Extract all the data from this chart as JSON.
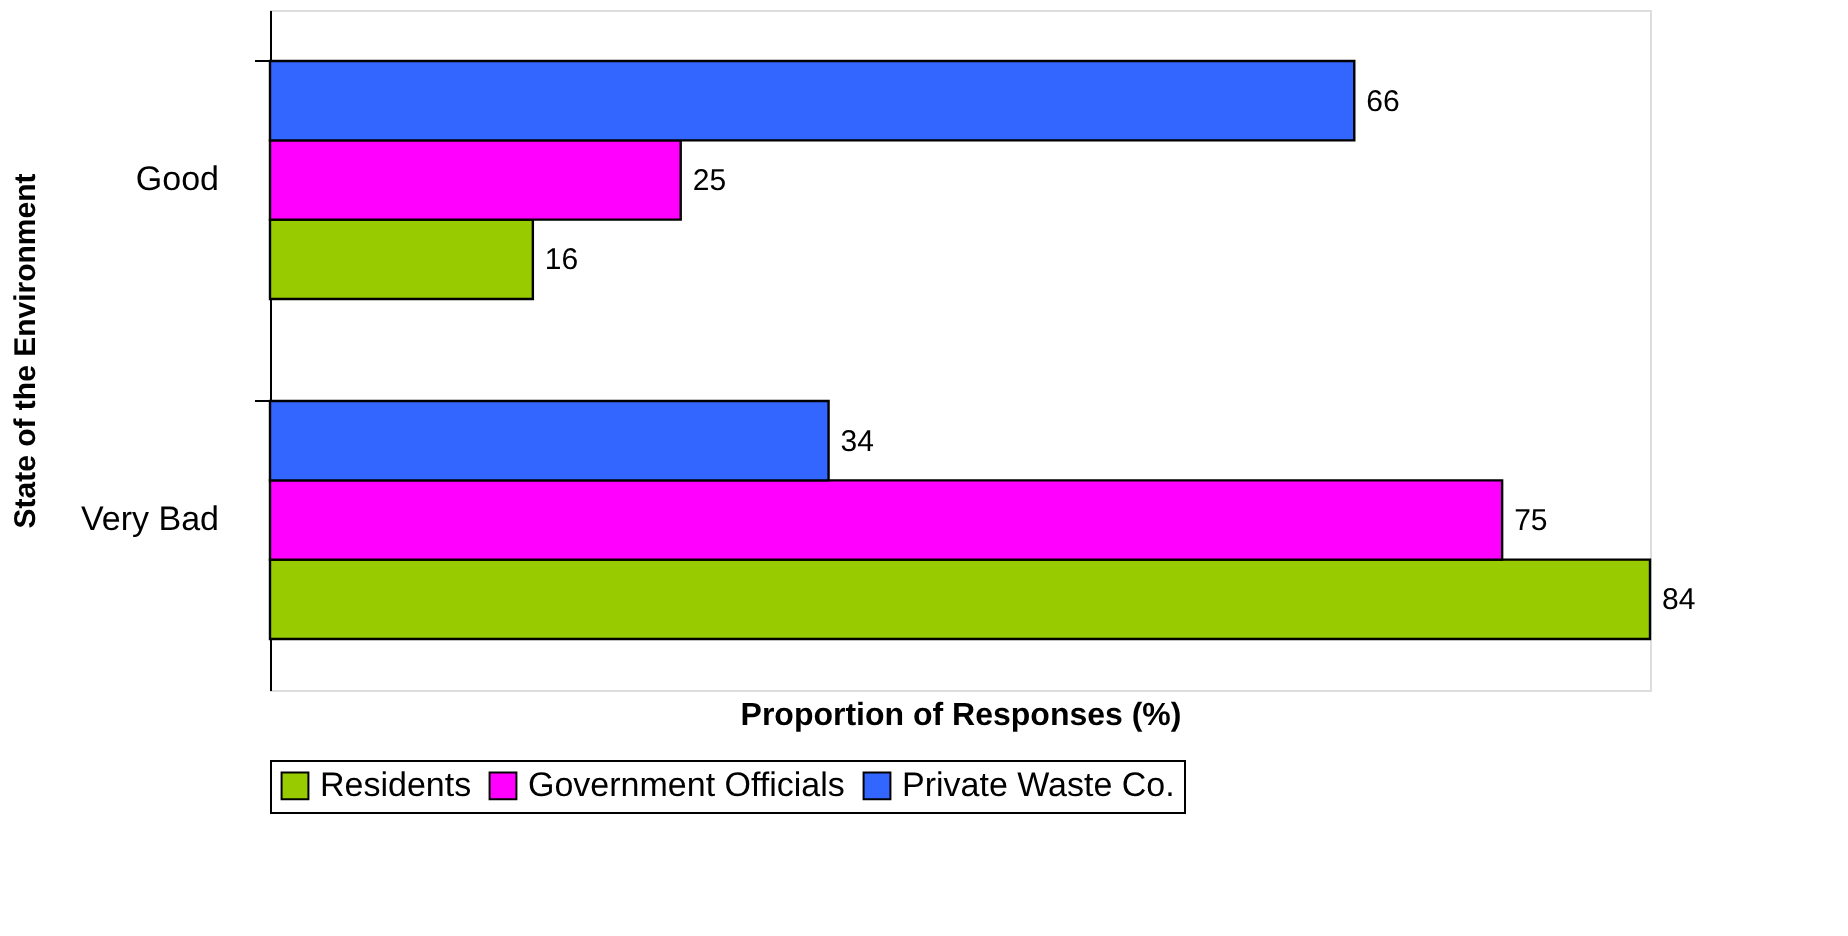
{
  "chart_data": {
    "type": "bar",
    "orientation": "horizontal",
    "ylabel": "State of the Environment",
    "xlabel": "Proportion of Responses (%)",
    "categories": [
      "Good",
      "Very Bad"
    ],
    "series": [
      {
        "name": "Residents",
        "color": "#99cc00",
        "values": [
          16,
          84
        ]
      },
      {
        "name": "Government Officials",
        "color": "#ff00ff",
        "values": [
          25,
          75
        ]
      },
      {
        "name": "Private Waste Co.",
        "color": "#3366ff",
        "values": [
          66,
          34
        ]
      }
    ],
    "data_labels": true,
    "legend": "bottom",
    "grid": false,
    "tick_labels": "y"
  }
}
